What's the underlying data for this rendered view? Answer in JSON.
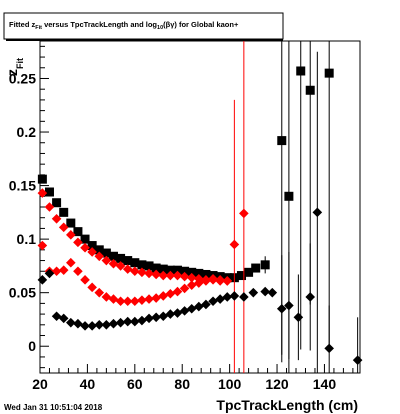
{
  "canvas_footer": "Wed Jan 31 10:51:04 2018",
  "chart_data": {
    "type": "scatter",
    "title": {
      "prefix": "Fitted  z",
      "sub1": "Fit",
      "middle": " versus TpcTrackLength and log",
      "sub2": "10",
      "suffix": "(βγ) for Global kaon+"
    },
    "xlabel": "TpcTrackLength (cm)",
    "ylabel": {
      "main": "z",
      "sub": "Fit"
    },
    "xlim": [
      20,
      155
    ],
    "ylim": [
      -0.025,
      0.285
    ],
    "xticks": [
      20,
      40,
      60,
      80,
      100,
      120,
      140
    ],
    "yticks": [
      0,
      0.05,
      0.1,
      0.15,
      0.2,
      0.25
    ],
    "ytick_labels": [
      "0",
      "0.05",
      "0.1",
      "0.15",
      "0.2",
      "0.25"
    ],
    "grid": false,
    "colors": {
      "black": "#000000",
      "red": "#ff0000"
    },
    "series": [
      {
        "marker": "square",
        "color": "#000000",
        "points": [
          {
            "x": 21,
            "y": 0.156
          },
          {
            "x": 24,
            "y": 0.144
          },
          {
            "x": 27,
            "y": 0.134
          },
          {
            "x": 30,
            "y": 0.125
          },
          {
            "x": 33,
            "y": 0.115
          },
          {
            "x": 36,
            "y": 0.107
          },
          {
            "x": 39,
            "y": 0.1
          },
          {
            "x": 42,
            "y": 0.094
          },
          {
            "x": 45,
            "y": 0.09
          },
          {
            "x": 48,
            "y": 0.087
          },
          {
            "x": 51,
            "y": 0.084
          },
          {
            "x": 54,
            "y": 0.082
          },
          {
            "x": 57,
            "y": 0.08
          },
          {
            "x": 60,
            "y": 0.078
          },
          {
            "x": 63,
            "y": 0.076
          },
          {
            "x": 66,
            "y": 0.075
          },
          {
            "x": 69,
            "y": 0.073
          },
          {
            "x": 72,
            "y": 0.072
          },
          {
            "x": 75,
            "y": 0.071
          },
          {
            "x": 78,
            "y": 0.071
          },
          {
            "x": 81,
            "y": 0.07
          },
          {
            "x": 84,
            "y": 0.069
          },
          {
            "x": 87,
            "y": 0.068
          },
          {
            "x": 90,
            "y": 0.067
          },
          {
            "x": 93,
            "y": 0.066
          },
          {
            "x": 96,
            "y": 0.065
          },
          {
            "x": 99,
            "y": 0.064
          },
          {
            "x": 102,
            "y": 0.064
          },
          {
            "x": 105,
            "y": 0.066
          },
          {
            "x": 108,
            "y": 0.069
          },
          {
            "x": 111,
            "y": 0.073
          },
          {
            "x": 115,
            "y": 0.076,
            "err": 0.008
          },
          {
            "x": 122,
            "y": 0.192,
            "err": 0.2
          },
          {
            "x": 125,
            "y": 0.14,
            "err": 0.2
          },
          {
            "x": 130,
            "y": 0.257,
            "err": 0.26
          },
          {
            "x": 134,
            "y": 0.239,
            "err": 0.2
          },
          {
            "x": 142,
            "y": 0.255,
            "err": 0.26
          }
        ]
      },
      {
        "marker": "diamond",
        "color": "#ff0000",
        "points": [
          {
            "x": 21,
            "y": 0.143
          },
          {
            "x": 24,
            "y": 0.13
          },
          {
            "x": 27,
            "y": 0.119
          },
          {
            "x": 30,
            "y": 0.111
          },
          {
            "x": 33,
            "y": 0.104
          },
          {
            "x": 36,
            "y": 0.097
          },
          {
            "x": 39,
            "y": 0.092
          },
          {
            "x": 42,
            "y": 0.088
          },
          {
            "x": 45,
            "y": 0.084
          },
          {
            "x": 48,
            "y": 0.08
          },
          {
            "x": 51,
            "y": 0.077
          },
          {
            "x": 54,
            "y": 0.075
          },
          {
            "x": 57,
            "y": 0.072
          },
          {
            "x": 60,
            "y": 0.07
          },
          {
            "x": 63,
            "y": 0.069
          },
          {
            "x": 66,
            "y": 0.068
          },
          {
            "x": 69,
            "y": 0.067
          },
          {
            "x": 72,
            "y": 0.066
          },
          {
            "x": 75,
            "y": 0.066
          },
          {
            "x": 78,
            "y": 0.066
          },
          {
            "x": 81,
            "y": 0.065
          },
          {
            "x": 84,
            "y": 0.064
          },
          {
            "x": 87,
            "y": 0.063
          },
          {
            "x": 90,
            "y": 0.062
          },
          {
            "x": 93,
            "y": 0.062
          },
          {
            "x": 96,
            "y": 0.061
          },
          {
            "x": 99,
            "y": 0.061
          }
        ]
      },
      {
        "marker": "diamond",
        "color": "#ff0000",
        "points": [
          {
            "x": 21,
            "y": 0.094
          },
          {
            "x": 24,
            "y": 0.07
          },
          {
            "x": 27,
            "y": 0.07
          },
          {
            "x": 30,
            "y": 0.071
          },
          {
            "x": 33,
            "y": 0.078
          },
          {
            "x": 36,
            "y": 0.07
          },
          {
            "x": 39,
            "y": 0.062
          },
          {
            "x": 42,
            "y": 0.055
          },
          {
            "x": 45,
            "y": 0.05
          },
          {
            "x": 48,
            "y": 0.046
          },
          {
            "x": 51,
            "y": 0.044
          },
          {
            "x": 54,
            "y": 0.042
          },
          {
            "x": 57,
            "y": 0.042
          },
          {
            "x": 60,
            "y": 0.042
          },
          {
            "x": 63,
            "y": 0.043
          },
          {
            "x": 66,
            "y": 0.044
          },
          {
            "x": 69,
            "y": 0.045
          },
          {
            "x": 72,
            "y": 0.047
          },
          {
            "x": 75,
            "y": 0.049
          },
          {
            "x": 78,
            "y": 0.051
          },
          {
            "x": 81,
            "y": 0.054
          },
          {
            "x": 84,
            "y": 0.057
          },
          {
            "x": 87,
            "y": 0.059
          },
          {
            "x": 90,
            "y": 0.061
          },
          {
            "x": 93,
            "y": 0.063
          },
          {
            "x": 96,
            "y": 0.062
          },
          {
            "x": 99,
            "y": 0.061
          },
          {
            "x": 102,
            "y": 0.095,
            "err": 0.135
          },
          {
            "x": 106,
            "y": 0.124,
            "err": 0.168
          }
        ]
      },
      {
        "marker": "diamond",
        "color": "#000000",
        "points": [
          {
            "x": 21,
            "y": 0.062
          },
          {
            "x": 24,
            "y": 0.068
          },
          {
            "x": 27,
            "y": 0.028
          },
          {
            "x": 30,
            "y": 0.026
          },
          {
            "x": 33,
            "y": 0.022
          },
          {
            "x": 36,
            "y": 0.021
          },
          {
            "x": 39,
            "y": 0.019
          },
          {
            "x": 42,
            "y": 0.019
          },
          {
            "x": 45,
            "y": 0.02
          },
          {
            "x": 48,
            "y": 0.02
          },
          {
            "x": 51,
            "y": 0.021
          },
          {
            "x": 54,
            "y": 0.022
          },
          {
            "x": 57,
            "y": 0.023
          },
          {
            "x": 60,
            "y": 0.023
          },
          {
            "x": 63,
            "y": 0.024
          },
          {
            "x": 66,
            "y": 0.026
          },
          {
            "x": 69,
            "y": 0.027
          },
          {
            "x": 72,
            "y": 0.028
          },
          {
            "x": 75,
            "y": 0.03
          },
          {
            "x": 78,
            "y": 0.031
          },
          {
            "x": 81,
            "y": 0.033
          },
          {
            "x": 84,
            "y": 0.035
          },
          {
            "x": 87,
            "y": 0.037
          },
          {
            "x": 90,
            "y": 0.039
          },
          {
            "x": 93,
            "y": 0.042
          },
          {
            "x": 96,
            "y": 0.044
          },
          {
            "x": 99,
            "y": 0.046
          },
          {
            "x": 102,
            "y": 0.047
          },
          {
            "x": 106,
            "y": 0.046
          },
          {
            "x": 110,
            "y": 0.05
          },
          {
            "x": 115,
            "y": 0.051
          },
          {
            "x": 118,
            "y": 0.05
          },
          {
            "x": 122,
            "y": 0.035,
            "err": 0.05
          },
          {
            "x": 125,
            "y": 0.038,
            "err": 0.05
          },
          {
            "x": 129,
            "y": 0.027,
            "err": 0.04
          },
          {
            "x": 134,
            "y": 0.046,
            "err": 0.05
          },
          {
            "x": 137,
            "y": 0.125,
            "err": 0.15
          },
          {
            "x": 142,
            "y": -0.002,
            "err": 0.04
          },
          {
            "x": 154,
            "y": -0.013,
            "err": 0.04
          }
        ]
      }
    ]
  }
}
